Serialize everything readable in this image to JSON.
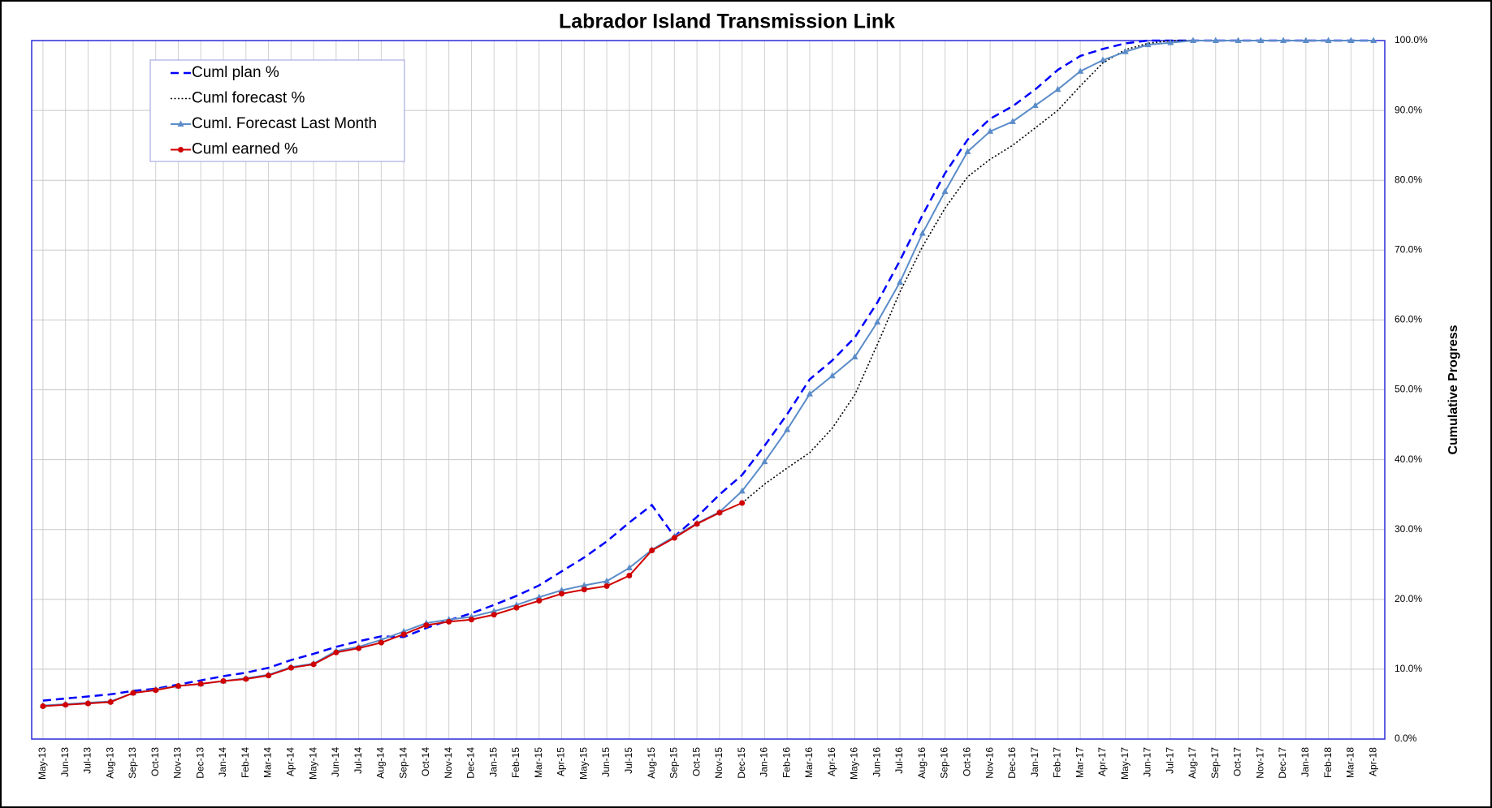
{
  "chart_data": {
    "type": "line",
    "title": "Labrador Island Transmission Link",
    "y_axis_label": "Cumulative Progress",
    "y_axis_side": "right",
    "legend": "upper left",
    "grid": true,
    "categories": [
      "May-13",
      "Jun-13",
      "Jul-13",
      "Aug-13",
      "Sep-13",
      "Oct-13",
      "Nov-13",
      "Dec-13",
      "Jan-14",
      "Feb-14",
      "Mar-14",
      "Apr-14",
      "May-14",
      "Jun-14",
      "Jul-14",
      "Aug-14",
      "Sep-14",
      "Oct-14",
      "Nov-14",
      "Dec-14",
      "Jan-15",
      "Feb-15",
      "Mar-15",
      "Apr-15",
      "May-15",
      "Jun-15",
      "Jul-15",
      "Aug-15",
      "Sep-15",
      "Oct-15",
      "Nov-15",
      "Dec-15",
      "Jan-16",
      "Feb-16",
      "Mar-16",
      "Apr-16",
      "May-16",
      "Jun-16",
      "Jul-16",
      "Aug-16",
      "Sep-16",
      "Oct-16",
      "Nov-16",
      "Dec-16",
      "Jan-17",
      "Feb-17",
      "Mar-17",
      "Apr-17",
      "May-17",
      "Jun-17",
      "Jul-17",
      "Aug-17",
      "Sep-17",
      "Oct-17",
      "Nov-17",
      "Dec-17",
      "Jan-18",
      "Feb-18",
      "Mar-18",
      "Apr-18"
    ],
    "ylim": [
      0,
      100
    ],
    "yticks": [
      {
        "value": 0,
        "label": "0.0%"
      },
      {
        "value": 10,
        "label": "10.0%"
      },
      {
        "value": 20,
        "label": "20.0%"
      },
      {
        "value": 30,
        "label": "30.0%"
      },
      {
        "value": 40,
        "label": "40.0%"
      },
      {
        "value": 50,
        "label": "50.0%"
      },
      {
        "value": 60,
        "label": "60.0%"
      },
      {
        "value": 70,
        "label": "70.0%"
      },
      {
        "value": 80,
        "label": "80.0%"
      },
      {
        "value": 90,
        "label": "90.0%"
      },
      {
        "value": 100,
        "label": "100.0%"
      }
    ],
    "series": [
      {
        "name": "Cuml plan %",
        "color": "#0000ff",
        "style": "dashed",
        "marker": "none",
        "values": [
          5.5,
          5.8,
          6.1,
          6.4,
          6.9,
          7.2,
          7.8,
          8.4,
          9.0,
          9.5,
          10.2,
          11.3,
          12.2,
          13.2,
          14.0,
          14.7,
          14.6,
          15.9,
          17.0,
          18.0,
          19.2,
          20.5,
          22.0,
          24.0,
          26.0,
          28.3,
          31.0,
          33.5,
          29.0,
          31.8,
          35.0,
          37.8,
          42.0,
          46.5,
          51.5,
          54.2,
          57.5,
          62.5,
          68.5,
          75.0,
          81.0,
          85.8,
          88.8,
          90.6,
          93.0,
          95.8,
          97.8,
          98.8,
          99.6,
          100,
          100,
          100,
          100,
          100,
          100,
          100,
          100,
          100,
          100,
          100
        ]
      },
      {
        "name": "Cuml forecast %",
        "color": "#000000",
        "style": "dotted",
        "marker": "none",
        "values": [
          null,
          null,
          null,
          null,
          null,
          null,
          null,
          null,
          null,
          null,
          null,
          null,
          null,
          null,
          null,
          null,
          null,
          null,
          null,
          null,
          null,
          null,
          null,
          null,
          null,
          null,
          null,
          null,
          null,
          null,
          null,
          33.8,
          36.5,
          38.8,
          41.0,
          44.5,
          49.3,
          56.5,
          64.0,
          70.5,
          76.0,
          80.5,
          83.0,
          85.0,
          87.5,
          90.0,
          93.5,
          96.8,
          98.7,
          99.6,
          100,
          100,
          100,
          100,
          100,
          100,
          100,
          100,
          100,
          100
        ]
      },
      {
        "name": "Cuml. Forecast Last Month",
        "color": "#5b8cc8",
        "style": "solid",
        "marker": "triangle",
        "values": [
          4.8,
          5.0,
          5.2,
          5.4,
          6.6,
          7.1,
          7.6,
          7.9,
          8.3,
          8.7,
          9.2,
          10.3,
          10.8,
          12.6,
          13.2,
          14.2,
          15.4,
          16.6,
          17.1,
          17.5,
          18.3,
          19.2,
          20.3,
          21.3,
          22.0,
          22.6,
          24.5,
          27.1,
          29.0,
          30.9,
          32.5,
          35.5,
          39.7,
          44.3,
          49.4,
          52.0,
          54.7,
          59.7,
          65.4,
          72.4,
          78.4,
          84.1,
          87.0,
          88.4,
          90.7,
          93.0,
          95.6,
          97.2,
          98.4,
          99.4,
          99.7,
          100,
          100,
          100,
          100,
          100,
          100,
          100,
          100,
          100
        ]
      },
      {
        "name": "Cuml earned %",
        "color": "#d00000",
        "style": "solid",
        "marker": "circle",
        "values": [
          4.7,
          4.9,
          5.1,
          5.3,
          6.6,
          7.0,
          7.6,
          7.9,
          8.3,
          8.6,
          9.1,
          10.2,
          10.7,
          12.4,
          13.0,
          13.8,
          15.0,
          16.3,
          16.8,
          17.1,
          17.8,
          18.8,
          19.8,
          20.8,
          21.4,
          21.9,
          23.4,
          27.0,
          28.8,
          30.8,
          32.4,
          33.8,
          null,
          null,
          null,
          null,
          null,
          null,
          null,
          null,
          null,
          null,
          null,
          null,
          null,
          null,
          null,
          null,
          null,
          null,
          null,
          null,
          null,
          null,
          null,
          null,
          null,
          null,
          null,
          null
        ]
      }
    ]
  }
}
